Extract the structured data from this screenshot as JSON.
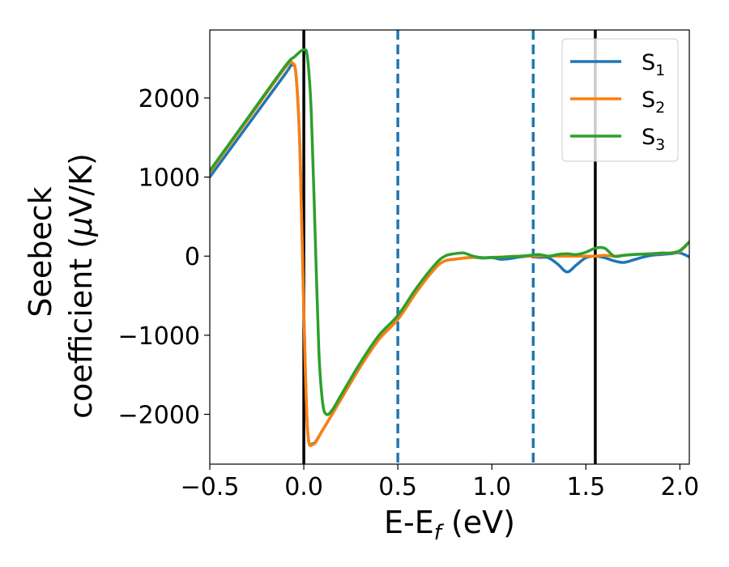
{
  "chart_data": {
    "type": "line",
    "xlabel": {
      "main": "E-E",
      "sub": "f",
      "tail": " (eV)"
    },
    "ylabel": {
      "line1": "Seebeck",
      "line2_pre": "coefficient  (",
      "line2_mu": "μ",
      "line2_post": "V/K)"
    },
    "xlim": [
      -0.5,
      2.05
    ],
    "ylim": [
      -2630,
      2860
    ],
    "xticks": [
      -0.5,
      0.0,
      0.5,
      1.0,
      1.5,
      2.0
    ],
    "xtick_labels": [
      "−0.5",
      "0.0",
      "0.5",
      "1.0",
      "1.5",
      "2.0"
    ],
    "yticks": [
      -2000,
      -1000,
      0,
      1000,
      2000
    ],
    "ytick_labels": [
      "−2000",
      "−1000",
      "0",
      "1000",
      "2000"
    ],
    "grid": false,
    "legend_position": "top-right",
    "vlines": [
      {
        "x": 0.0,
        "style": "solid",
        "color": "#000000"
      },
      {
        "x": 1.55,
        "style": "solid",
        "color": "#000000"
      },
      {
        "x": 0.5,
        "style": "dashed",
        "color": "#1f77b4"
      },
      {
        "x": 1.22,
        "style": "dashed",
        "color": "#1f77b4"
      }
    ],
    "series": [
      {
        "name": "S",
        "sub": "1",
        "color": "#1f77b4",
        "x": [
          -0.5,
          -0.3,
          -0.1,
          -0.06,
          -0.04,
          -0.02,
          0.0,
          0.02,
          0.05,
          0.1,
          0.2,
          0.3,
          0.4,
          0.5,
          0.6,
          0.7,
          0.75,
          0.8,
          0.85,
          0.9,
          0.95,
          1.0,
          1.05,
          1.1,
          1.15,
          1.2,
          1.25,
          1.3,
          1.35,
          1.4,
          1.45,
          1.5,
          1.55,
          1.6,
          1.65,
          1.7,
          1.75,
          1.8,
          1.85,
          1.9,
          1.95,
          2.0,
          2.05
        ],
        "y": [
          1000,
          1650,
          2300,
          2420,
          2250,
          1300,
          -700,
          -2200,
          -2370,
          -2200,
          -1800,
          -1400,
          -1050,
          -800,
          -450,
          -150,
          -60,
          -40,
          -25,
          -15,
          -25,
          -20,
          -40,
          -30,
          -10,
          0,
          -15,
          -20,
          -100,
          -200,
          -110,
          -20,
          0,
          -20,
          -60,
          -80,
          -50,
          -15,
          10,
          20,
          30,
          40,
          -10
        ]
      },
      {
        "name": "S",
        "sub": "2",
        "color": "#ff7f0e",
        "x": [
          -0.5,
          -0.3,
          -0.1,
          -0.06,
          -0.04,
          -0.02,
          0.0,
          0.02,
          0.05,
          0.1,
          0.2,
          0.3,
          0.4,
          0.5,
          0.6,
          0.7,
          0.75,
          0.8,
          0.85,
          0.9,
          0.95,
          1.0,
          1.05,
          1.1,
          1.15,
          1.2,
          1.25,
          1.3,
          1.35,
          1.4,
          1.45,
          1.5,
          1.55,
          1.6,
          1.65,
          1.7,
          1.75,
          1.8,
          1.85,
          1.9,
          1.95,
          2.0,
          2.05
        ],
        "y": [
          1060,
          1720,
          2380,
          2440,
          2260,
          1300,
          -700,
          -2200,
          -2380,
          -2200,
          -1800,
          -1400,
          -1050,
          -800,
          -450,
          -150,
          -60,
          -40,
          -25,
          -15,
          -20,
          -15,
          -10,
          -5,
          0,
          0,
          5,
          0,
          0,
          0,
          0,
          0,
          0,
          10,
          0,
          10,
          20,
          25,
          30,
          35,
          40,
          60,
          180
        ]
      },
      {
        "name": "S",
        "sub": "3",
        "color": "#2ca02c",
        "x": [
          -0.5,
          -0.3,
          -0.1,
          -0.05,
          0.0,
          0.02,
          0.04,
          0.06,
          0.08,
          0.1,
          0.12,
          0.15,
          0.2,
          0.3,
          0.4,
          0.5,
          0.6,
          0.7,
          0.75,
          0.8,
          0.85,
          0.9,
          0.95,
          1.0,
          1.05,
          1.1,
          1.15,
          1.2,
          1.25,
          1.3,
          1.35,
          1.4,
          1.45,
          1.5,
          1.55,
          1.6,
          1.65,
          1.7,
          1.75,
          1.8,
          1.85,
          1.9,
          1.95,
          2.0,
          2.05
        ],
        "y": [
          1080,
          1740,
          2400,
          2520,
          2610,
          2500,
          1800,
          300,
          -1200,
          -1850,
          -2000,
          -1950,
          -1750,
          -1350,
          -1000,
          -750,
          -400,
          -100,
          0,
          30,
          40,
          0,
          -20,
          -15,
          -15,
          -5,
          0,
          10,
          20,
          0,
          20,
          30,
          20,
          50,
          100,
          100,
          0,
          10,
          20,
          25,
          30,
          40,
          40,
          70,
          180
        ]
      }
    ]
  }
}
